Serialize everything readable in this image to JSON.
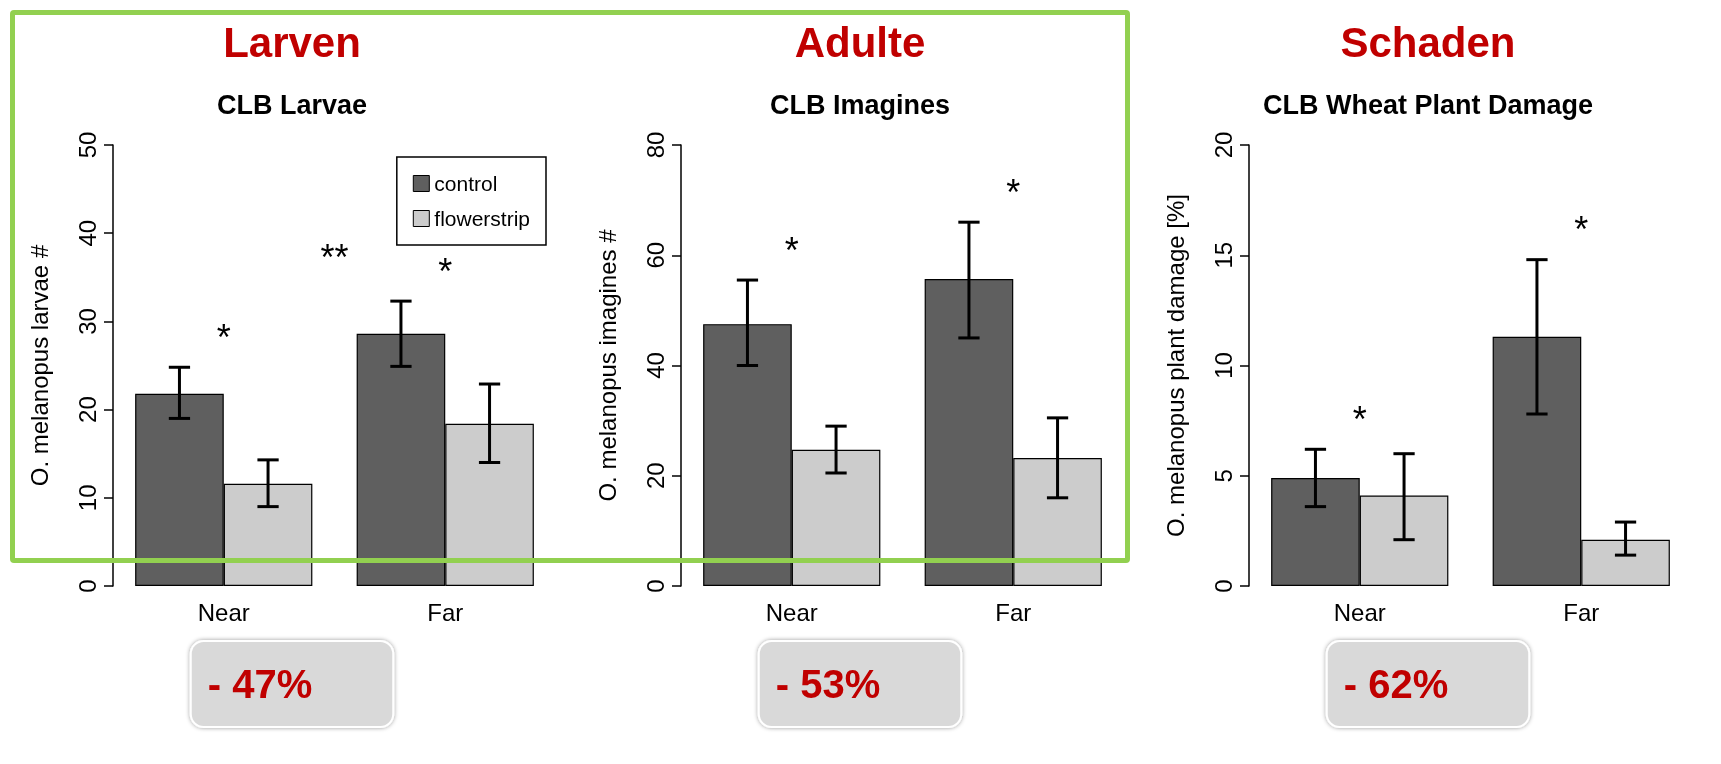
{
  "chart_data": [
    {
      "type": "bar",
      "title": "Larven",
      "subtitle": "CLB Larvae",
      "ylabel": "O. melanopus larvae #",
      "categories": [
        "Near",
        "Far"
      ],
      "series": [
        {
          "name": "control",
          "color": "#5f5f5f",
          "values": [
            21.8,
            28.6
          ],
          "errors": [
            [
              19,
              24.8
            ],
            [
              24.9,
              32.3
            ]
          ]
        },
        {
          "name": "flowerstrip",
          "color": "#cccccc",
          "values": [
            11.6,
            18.4
          ],
          "errors": [
            [
              9,
              14.3
            ],
            [
              14,
              22.9
            ]
          ]
        }
      ],
      "ylim": [
        0,
        50
      ],
      "yticks": [
        0,
        10,
        20,
        30,
        40,
        50
      ],
      "grid": false,
      "legend": "top right",
      "annotations": [
        "*",
        "**",
        "*",
        "- 47%"
      ]
    },
    {
      "type": "bar",
      "title": "Adulte",
      "subtitle": "CLB Imagines",
      "ylabel": "O. melanopus imagines #",
      "categories": [
        "Near",
        "Far"
      ],
      "series": [
        {
          "color": "#5f5f5f",
          "values": [
            47.5,
            55.7
          ],
          "errors": [
            [
              40,
              55.5
            ],
            [
              45,
              66
            ]
          ]
        },
        {
          "color": "#cccccc",
          "values": [
            24.7,
            23.2
          ],
          "errors": [
            [
              20.5,
              29
            ],
            [
              16,
              30.5
            ]
          ]
        }
      ],
      "ylim": [
        0,
        80
      ],
      "yticks": [
        0,
        20,
        40,
        60,
        80
      ],
      "grid": false,
      "legend": false,
      "annotations": [
        "*",
        "*",
        "- 53%"
      ]
    },
    {
      "type": "bar",
      "title": "Schaden",
      "subtitle": "CLB Wheat Plant Damage",
      "ylabel": "O. melanopus plant damage [%]",
      "categories": [
        "Near",
        "Far"
      ],
      "series": [
        {
          "color": "#5f5f5f",
          "values": [
            4.9,
            11.3
          ],
          "errors": [
            [
              3.6,
              6.2
            ],
            [
              7.8,
              14.8
            ]
          ]
        },
        {
          "color": "#cccccc",
          "values": [
            4.1,
            2.1
          ],
          "errors": [
            [
              2.1,
              6.0
            ],
            [
              1.4,
              2.9
            ]
          ]
        }
      ],
      "ylim": [
        0,
        20
      ],
      "yticks": [
        0,
        5,
        10,
        15,
        20
      ],
      "grid": false,
      "legend": false,
      "annotations": [
        "*",
        "*",
        "- 62%"
      ]
    }
  ]
}
